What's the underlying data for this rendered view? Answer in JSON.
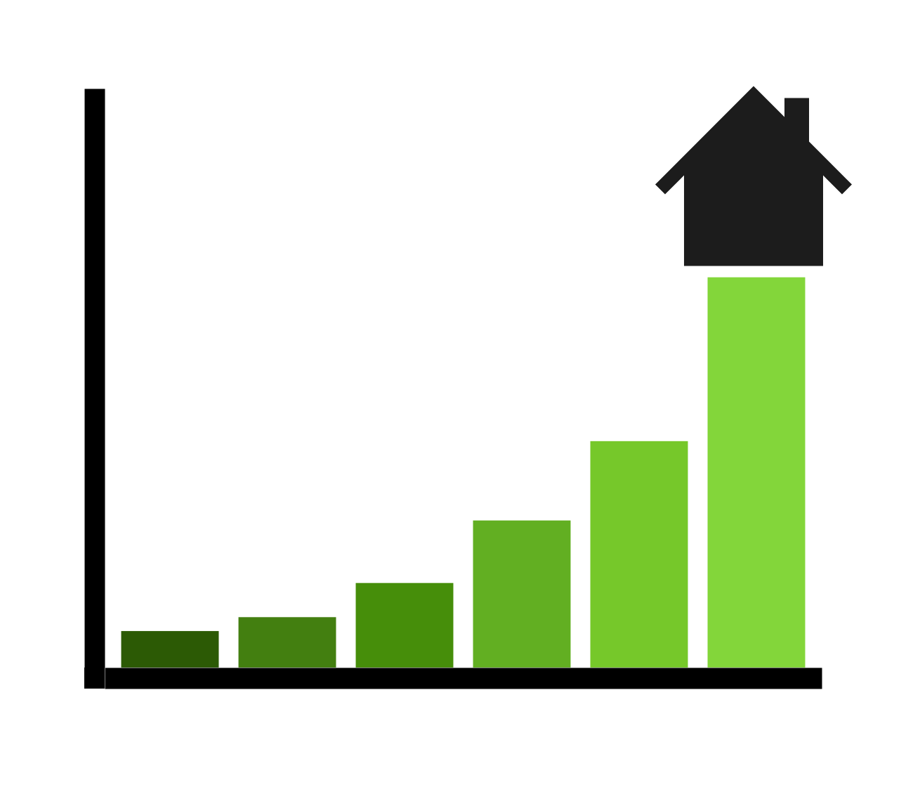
{
  "chart_data": {
    "type": "bar",
    "categories": [
      null,
      null,
      null,
      null,
      null,
      null
    ],
    "values": [
      6.3,
      8.7,
      14.6,
      25.4,
      39.1,
      67.4
    ],
    "colors": [
      "#2c5a05",
      "#437f10",
      "#468e0a",
      "#62af22",
      "#76c82a",
      "#83d63a"
    ],
    "ylim": [
      0,
      100
    ],
    "yticks": [],
    "tick_labels": false
  }
}
